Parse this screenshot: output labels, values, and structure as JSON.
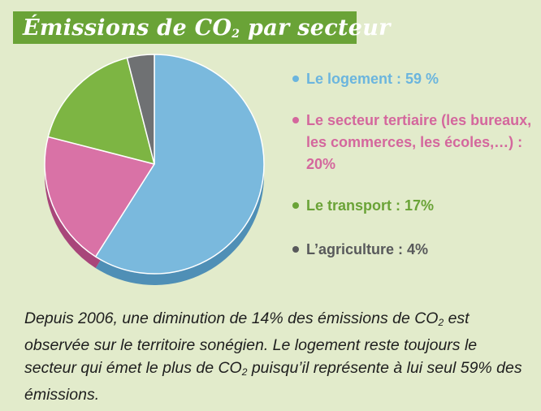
{
  "title": {
    "prefix": "Émissions de CO",
    "subscript": "2",
    "suffix": " par secteur"
  },
  "colors": {
    "background": "#e2ebcb",
    "banner": "#6aa337"
  },
  "chart_data": {
    "type": "pie",
    "title": "Émissions de CO2 par secteur",
    "slices": [
      {
        "name": "Le logement",
        "value": 59,
        "label": "Le logement : 59 %",
        "color": "#7ab9dd",
        "side_color": "#4f8fb6",
        "text_color": "#6bb5de"
      },
      {
        "name": "Le secteur tertiaire",
        "value": 20,
        "label": "Le secteur tertiaire (les bureaux, les commerces, les écoles,…) : 20%",
        "color": "#d972a6",
        "side_color": "#a8467a",
        "text_color": "#d4679d"
      },
      {
        "name": "Le transport",
        "value": 17,
        "label": "Le transport : 17%",
        "color": "#7db543",
        "side_color": "#4f7d22",
        "text_color": "#6aa337"
      },
      {
        "name": "L’agriculture",
        "value": 4,
        "label": "L’agriculture : 4%",
        "color": "#6f7173",
        "side_color": "#45474a",
        "text_color": "#58595b"
      }
    ],
    "legend_position": "right"
  },
  "caption": {
    "part1": "Depuis 2006, une diminution de 14% des émissions de CO",
    "sub1": "2",
    "part2": " est observée sur le territoire sonégien. Le logement reste toujours le secteur qui émet le plus de CO",
    "sub2": "2",
    "part3": " puisqu’il représente à lui seul 59% des émissions."
  }
}
